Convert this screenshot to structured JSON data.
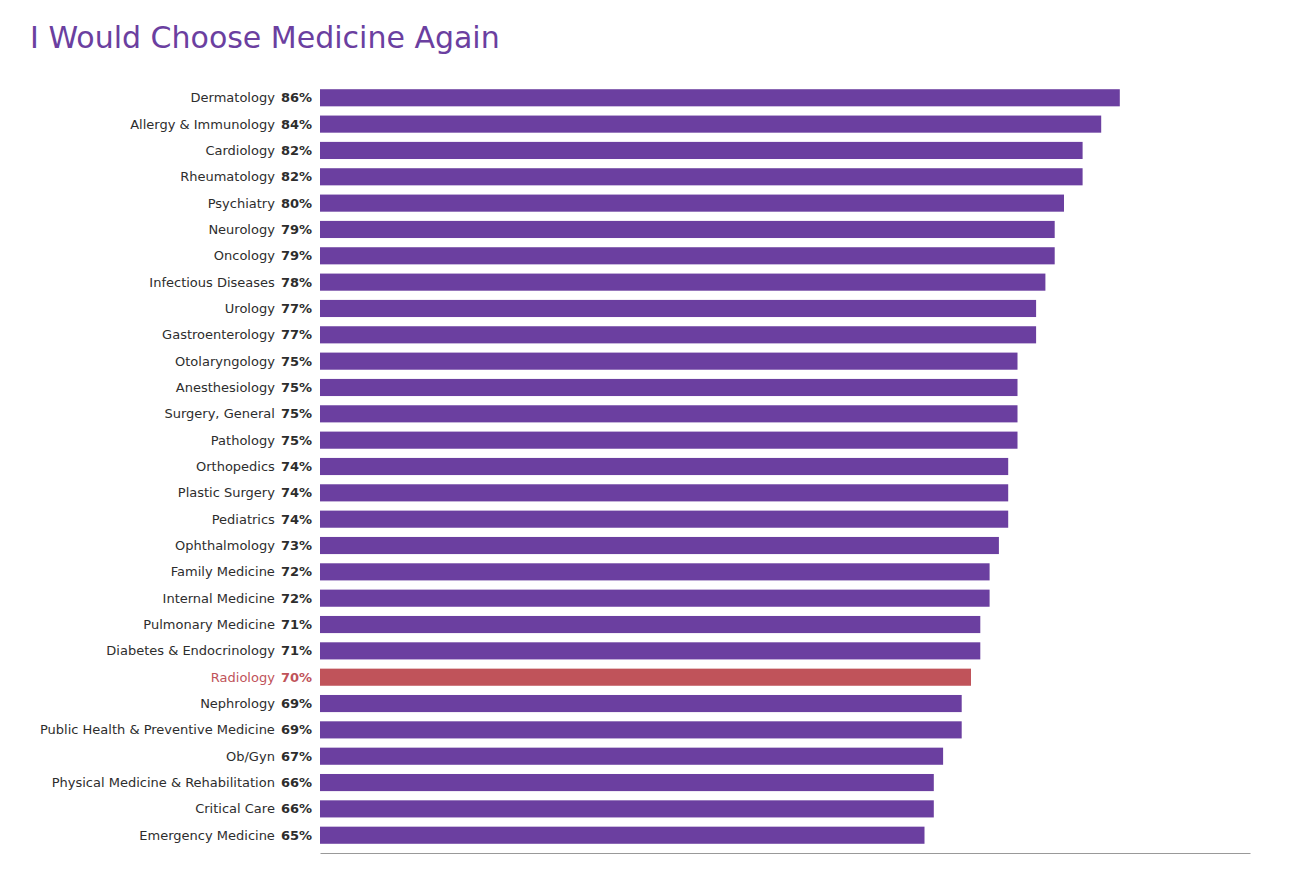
{
  "chart_data": {
    "type": "bar",
    "orientation": "horizontal",
    "title": "I Would Choose Medicine Again",
    "categories": [
      "Dermatology",
      "Allergy & Immunology",
      "Cardiology",
      "Rheumatology",
      "Psychiatry",
      "Neurology",
      "Oncology",
      "Infectious Diseases",
      "Urology",
      "Gastroenterology",
      "Otolaryngology",
      "Anesthesiology",
      "Surgery, General",
      "Pathology",
      "Orthopedics",
      "Plastic Surgery",
      "Pediatrics",
      "Ophthalmology",
      "Family Medicine",
      "Internal Medicine",
      "Pulmonary Medicine",
      "Diabetes & Endocrinology",
      "Radiology",
      "Nephrology",
      "Public Health & Preventive Medicine",
      "Ob/Gyn",
      "Physical Medicine & Rehabilitation",
      "Critical Care",
      "Emergency Medicine"
    ],
    "values": [
      86,
      84,
      82,
      82,
      80,
      79,
      79,
      78,
      77,
      77,
      75,
      75,
      75,
      75,
      74,
      74,
      74,
      73,
      72,
      72,
      71,
      71,
      70,
      69,
      69,
      67,
      66,
      66,
      65
    ],
    "value_labels": [
      "86%",
      "84%",
      "82%",
      "82%",
      "80%",
      "79%",
      "79%",
      "78%",
      "77%",
      "77%",
      "75%",
      "75%",
      "75%",
      "75%",
      "74%",
      "74%",
      "74%",
      "73%",
      "72%",
      "72%",
      "71%",
      "71%",
      "70%",
      "69%",
      "69%",
      "67%",
      "66%",
      "66%",
      "65%"
    ],
    "colors": [
      "#6b3fa0",
      "#6b3fa0",
      "#6b3fa0",
      "#6b3fa0",
      "#6b3fa0",
      "#6b3fa0",
      "#6b3fa0",
      "#6b3fa0",
      "#6b3fa0",
      "#6b3fa0",
      "#6b3fa0",
      "#6b3fa0",
      "#6b3fa0",
      "#6b3fa0",
      "#6b3fa0",
      "#6b3fa0",
      "#6b3fa0",
      "#6b3fa0",
      "#6b3fa0",
      "#6b3fa0",
      "#6b3fa0",
      "#6b3fa0",
      "#c0535a",
      "#6b3fa0",
      "#6b3fa0",
      "#6b3fa0",
      "#6b3fa0",
      "#6b3fa0",
      "#6b3fa0"
    ],
    "xlim": [
      0,
      100
    ],
    "data_labels": true,
    "tick_labels": false,
    "grid": false
  }
}
